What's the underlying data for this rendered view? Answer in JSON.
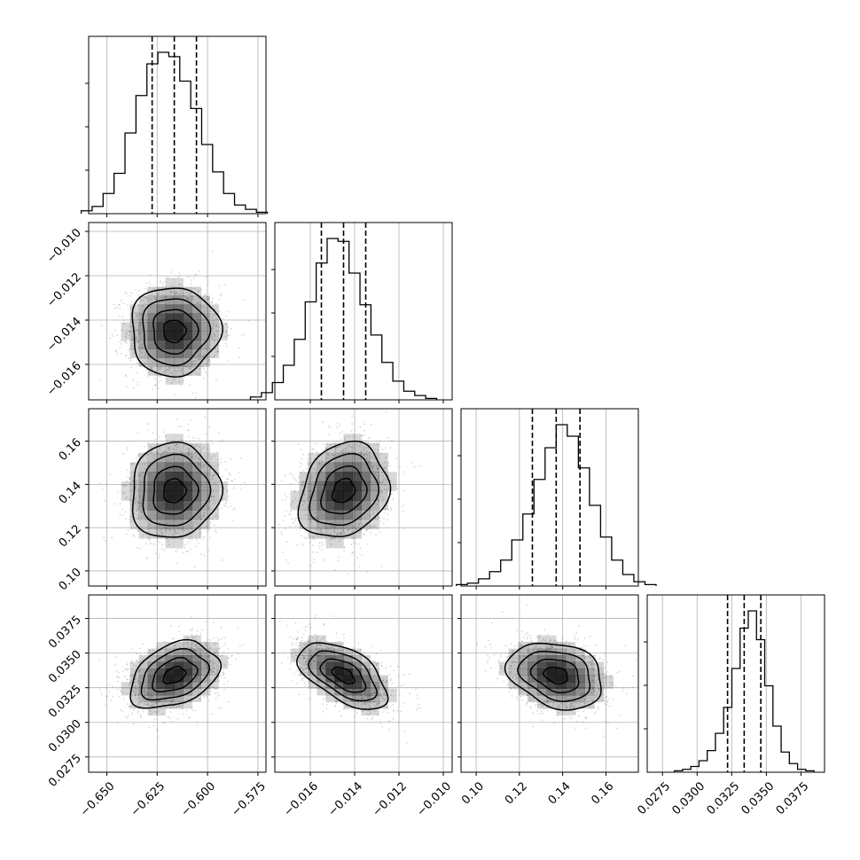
{
  "chart_data": {
    "type": "corner",
    "title": "",
    "parameters": [
      {
        "label": "",
        "range": [
          -0.659,
          -0.571
        ],
        "ticks": [
          -0.65,
          -0.625,
          -0.6,
          -0.575
        ],
        "tick_labels": [
          "−0.650",
          "−0.625",
          "−0.600",
          "−0.575"
        ],
        "quantiles": [
          -0.6275,
          -0.6165,
          -0.6055
        ],
        "hist_counts": [
          2,
          5,
          14,
          28,
          56,
          82,
          104,
          112,
          109,
          92,
          73,
          48,
          29,
          14,
          6,
          3,
          1
        ]
      },
      {
        "label": "",
        "range": [
          -0.0176,
          -0.0096
        ],
        "ticks": [
          -0.016,
          -0.014,
          -0.012,
          -0.01
        ],
        "tick_labels": [
          "−0.016",
          "−0.014",
          "−0.012",
          "−0.010"
        ],
        "quantiles": [
          -0.0155,
          -0.0145,
          -0.0135
        ],
        "hist_counts": [
          2,
          5,
          12,
          24,
          42,
          68,
          95,
          112,
          110,
          88,
          66,
          45,
          26,
          13,
          6,
          3,
          1
        ]
      },
      {
        "label": "",
        "range": [
          0.093,
          0.175
        ],
        "ticks": [
          0.1,
          0.12,
          0.14,
          0.16
        ],
        "tick_labels": [
          "0.10",
          "0.12",
          "0.14",
          "0.16"
        ],
        "quantiles": [
          0.126,
          0.137,
          0.148
        ],
        "hist_counts": [
          1,
          2,
          5,
          10,
          18,
          32,
          50,
          74,
          96,
          112,
          104,
          82,
          56,
          34,
          18,
          8,
          3,
          1
        ]
      },
      {
        "label": "",
        "range": [
          0.0264,
          0.0392
        ],
        "ticks": [
          0.0275,
          0.03,
          0.0325,
          0.035,
          0.0375
        ],
        "tick_labels": [
          "0.0275",
          "0.0300",
          "0.0325",
          "0.0350",
          "0.0375"
        ],
        "quantiles": [
          0.0322,
          0.0334,
          0.0346
        ],
        "hist_counts": [
          1,
          2,
          4,
          8,
          15,
          27,
          45,
          72,
          100,
          112,
          92,
          60,
          32,
          14,
          6,
          2,
          1
        ]
      }
    ],
    "correlations": {
      "1-0": 0.0,
      "2-0": 0.05,
      "2-1": 0.2,
      "3-0": 0.35,
      "3-1": -0.55,
      "3-2": -0.25
    },
    "contour_levels": [
      0.5,
      1.0,
      1.5,
      2.0
    ],
    "grid": true,
    "legend": "none"
  },
  "colors": {
    "axes": "#000000",
    "grid": "#b0b0b0",
    "hist_line": "#000000",
    "contour": "#000000",
    "scatter_points": "#8c8c8c",
    "density_fill": "#000000"
  }
}
